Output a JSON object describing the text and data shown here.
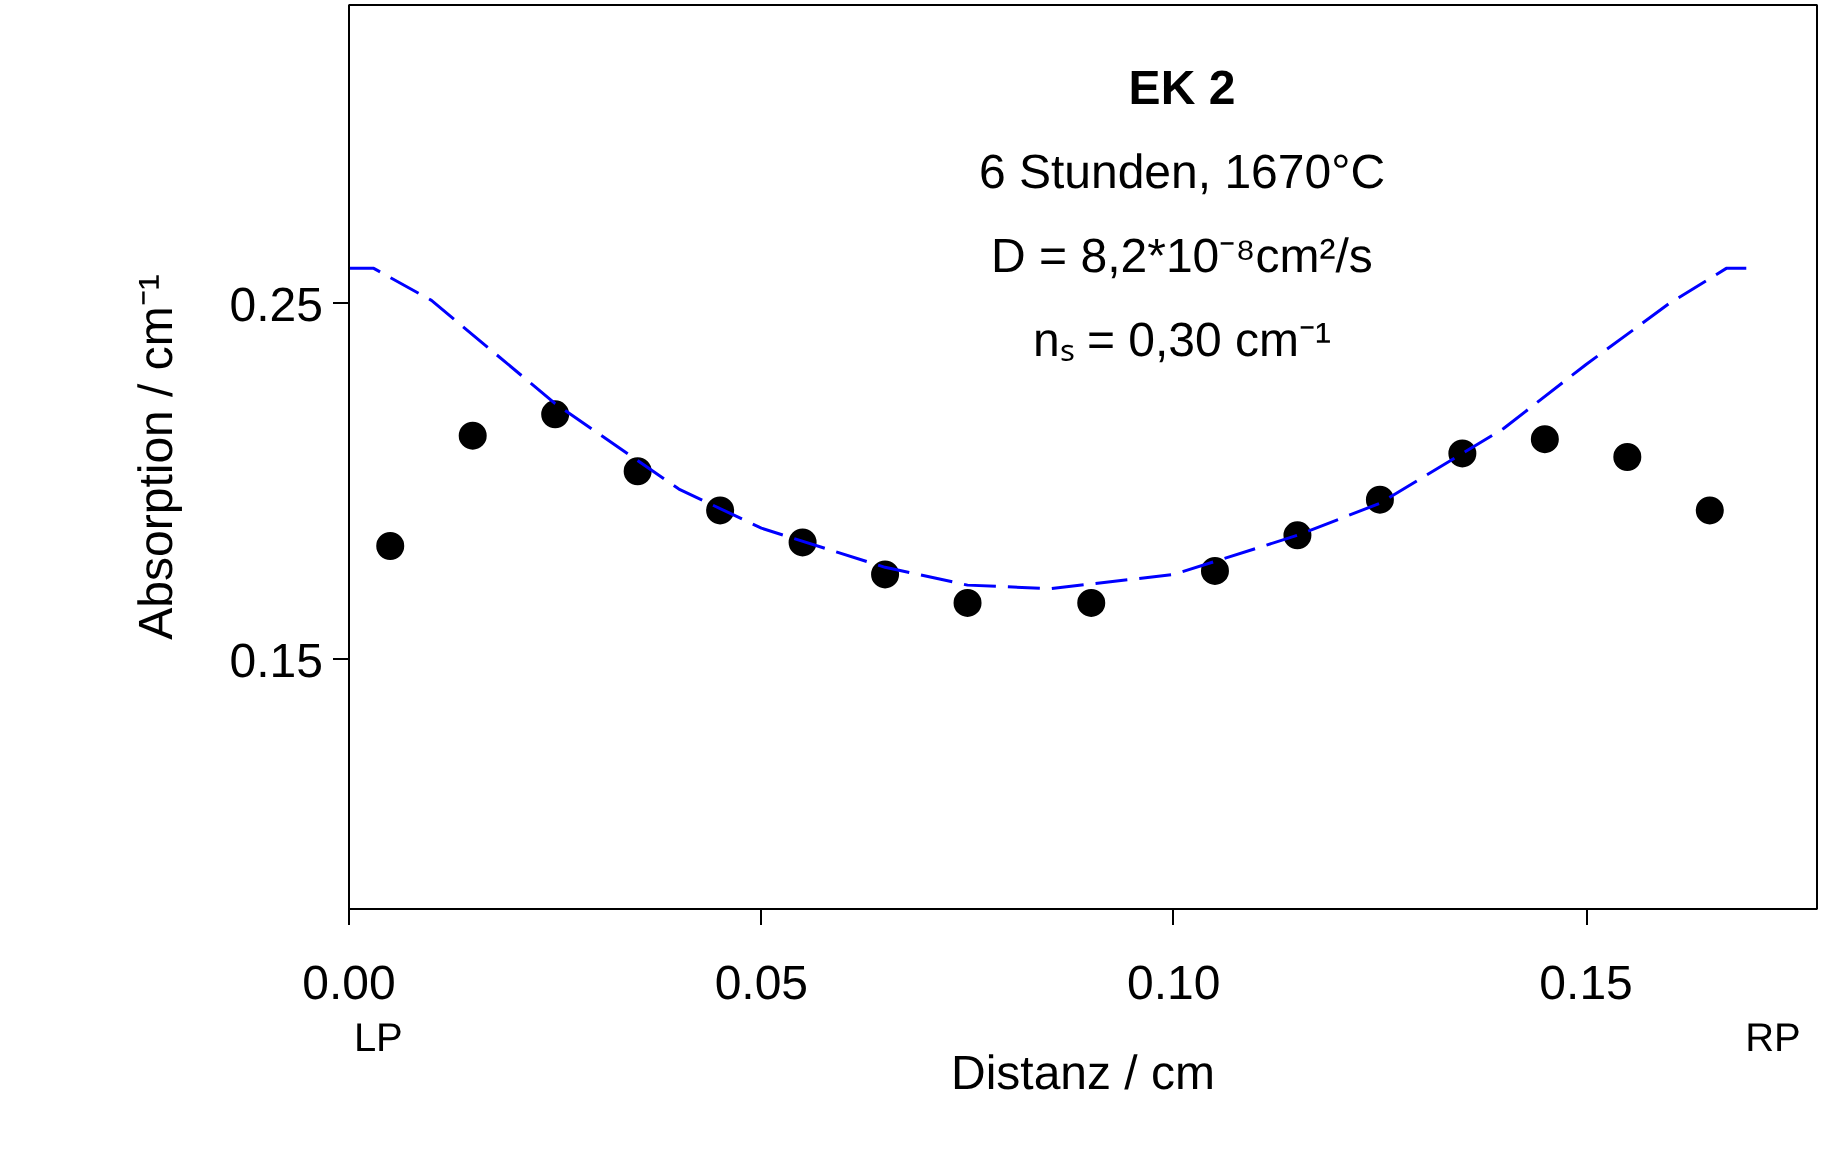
{
  "chart_data": {
    "type": "scatter",
    "xlabel": "Distanz / cm",
    "ylabel": "Absorption / cm⁻¹",
    "xlim": [
      0,
      0.178
    ],
    "ylim": [
      0.08,
      0.334
    ],
    "xticks": [
      {
        "value": 0,
        "label": "0.00"
      },
      {
        "value": 0.05,
        "label": "0.05"
      },
      {
        "value": 0.1,
        "label": "0.10"
      },
      {
        "value": 0.15,
        "label": "0.15"
      }
    ],
    "yticks": [
      0.15,
      0.25
    ],
    "grid": false,
    "marker": "circle",
    "series": [
      {
        "color": "#000000",
        "x": [
          0.005,
          0.015,
          0.025,
          0.035,
          0.045,
          0.055,
          0.065,
          0.075,
          0.09,
          0.105,
          0.115,
          0.125,
          0.135,
          0.145,
          0.155,
          0.165
        ],
        "values": [
          0.182,
          0.213,
          0.219,
          0.203,
          0.192,
          0.183,
          0.174,
          0.166,
          0.166,
          0.175,
          0.185,
          0.195,
          0.208,
          0.212,
          0.207,
          0.192
        ]
      },
      {
        "type": "line",
        "marker": "none",
        "line_style": "dashed",
        "color": "#0000ff",
        "x": [
          0,
          0.003,
          0.01,
          0.025,
          0.04,
          0.05,
          0.065,
          0.075,
          0.085,
          0.1,
          0.115,
          0.125,
          0.14,
          0.15,
          0.16,
          0.167,
          0.17
        ],
        "values": [
          0.26,
          0.26,
          0.251,
          0.222,
          0.198,
          0.187,
          0.176,
          0.171,
          0.17,
          0.174,
          0.185,
          0.194,
          0.215,
          0.233,
          0.25,
          0.26,
          0.26
        ]
      }
    ],
    "annotations": [
      "EK 2",
      "6 Stunden, 1670°C",
      "D = 8,2*10⁻⁸cm²/s",
      "nₛ = 0,30 cm⁻¹",
      "LP",
      "RP"
    ]
  }
}
